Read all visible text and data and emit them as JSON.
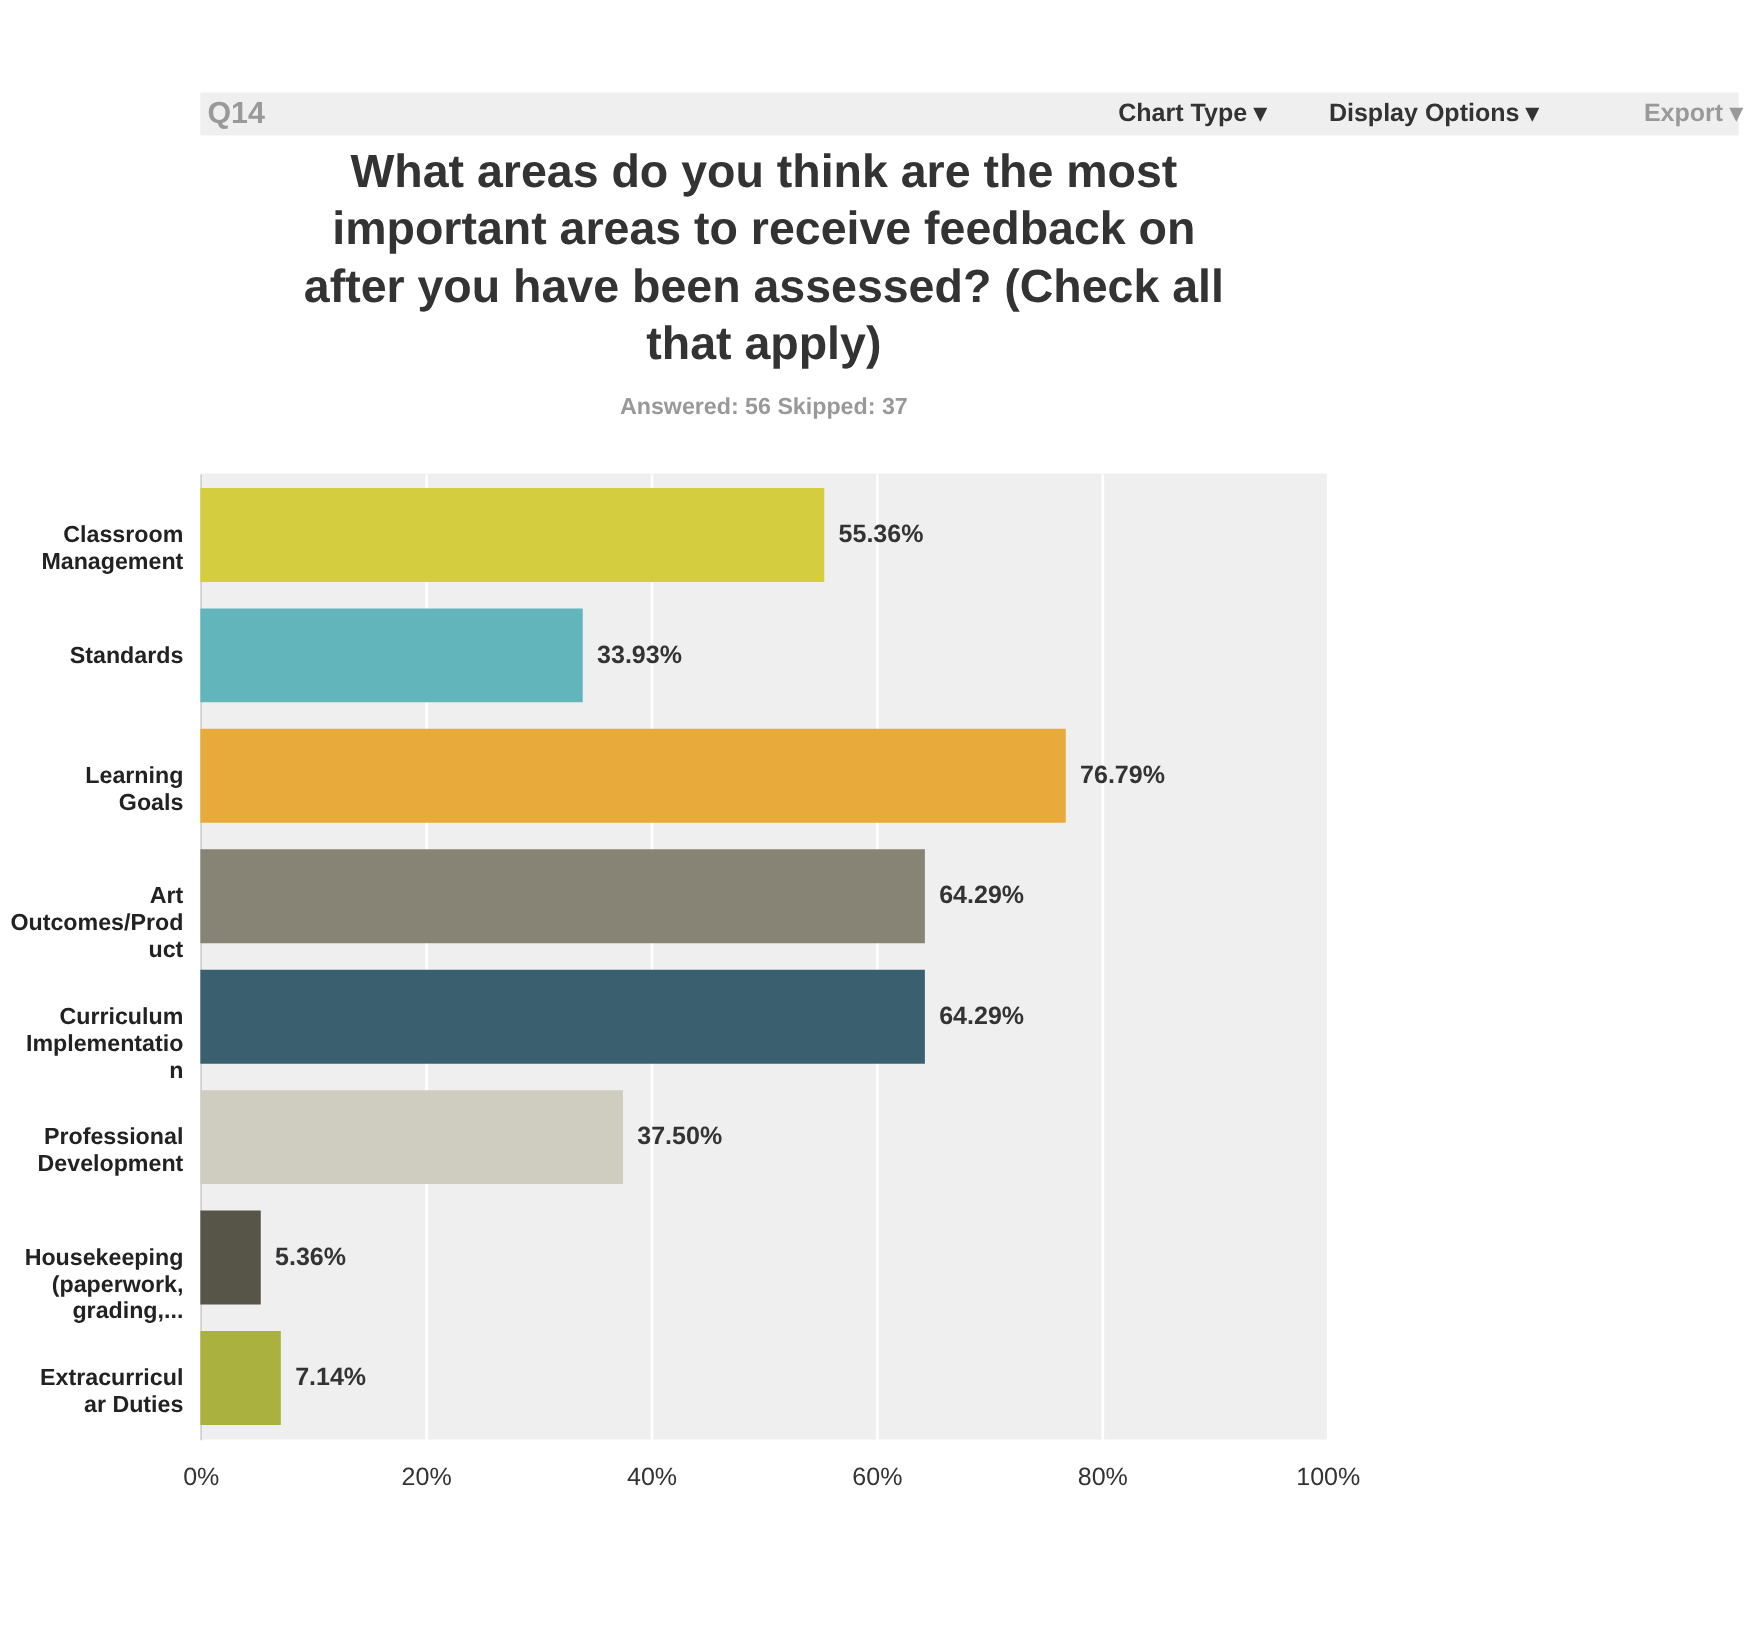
{
  "chart_data": {
    "type": "bar",
    "orientation": "horizontal",
    "title": "What areas do you think are the most important areas to receive feedback on after you have been assessed? (Check all that apply)",
    "subtitle": "Answered: 56    Skipped: 37",
    "annotations": [
      "Q14",
      "Chart Type ▾",
      "Display Options ▾",
      "Export ▾"
    ],
    "categories": [
      "Classroom Management",
      "Standards",
      "Learning Goals",
      "Art Outcomes/Product",
      "Curriculum Implementation",
      "Professional Development",
      "Housekeeping (paperwork, grading,...",
      "Extracurricular Duties"
    ],
    "values": [
      55.36,
      33.93,
      76.79,
      64.29,
      64.29,
      37.5,
      5.36,
      7.14
    ],
    "colors": [
      "#d3cd3f",
      "#62b6bb",
      "#e9aa3c",
      "#878475",
      "#3a5f6e",
      "#cfcdc0",
      "#575548",
      "#abb13f"
    ],
    "value_labels": [
      "55.36%",
      "33.93%",
      "76.79%",
      "64.29%",
      "64.29%",
      "37.50%",
      "5.36%",
      "7.14%"
    ],
    "xlim": [
      0,
      100
    ],
    "xticks": [
      {
        "value": 0,
        "label": "0%"
      },
      {
        "value": 20,
        "label": "20%"
      },
      {
        "value": 40,
        "label": "40%"
      },
      {
        "value": 60,
        "label": "60%"
      },
      {
        "value": 80,
        "label": "80%"
      },
      {
        "value": 100,
        "label": "100%"
      }
    ],
    "grid": "x"
  }
}
